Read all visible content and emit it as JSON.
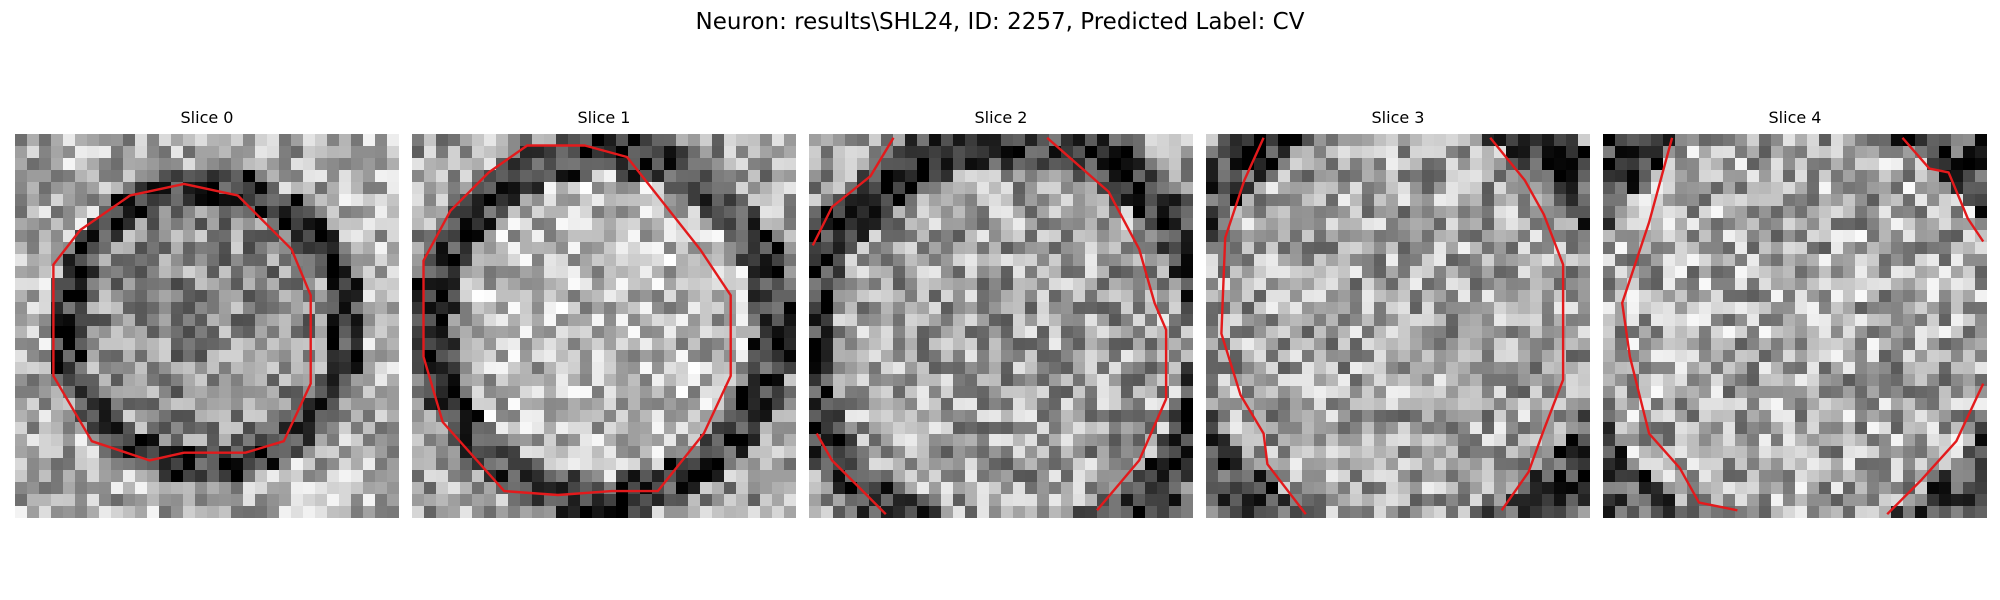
{
  "figure": {
    "title": "Neuron: results\\SHL24, ID: 2257, Predicted Label: CV"
  },
  "panels": [
    {
      "title": "Slice 0"
    },
    {
      "title": "Slice 1"
    },
    {
      "title": "Slice 2"
    },
    {
      "title": "Slice 3"
    },
    {
      "title": "Slice 4"
    }
  ],
  "colors": {
    "contour": "#e31a1c",
    "background": "#ffffff"
  }
}
